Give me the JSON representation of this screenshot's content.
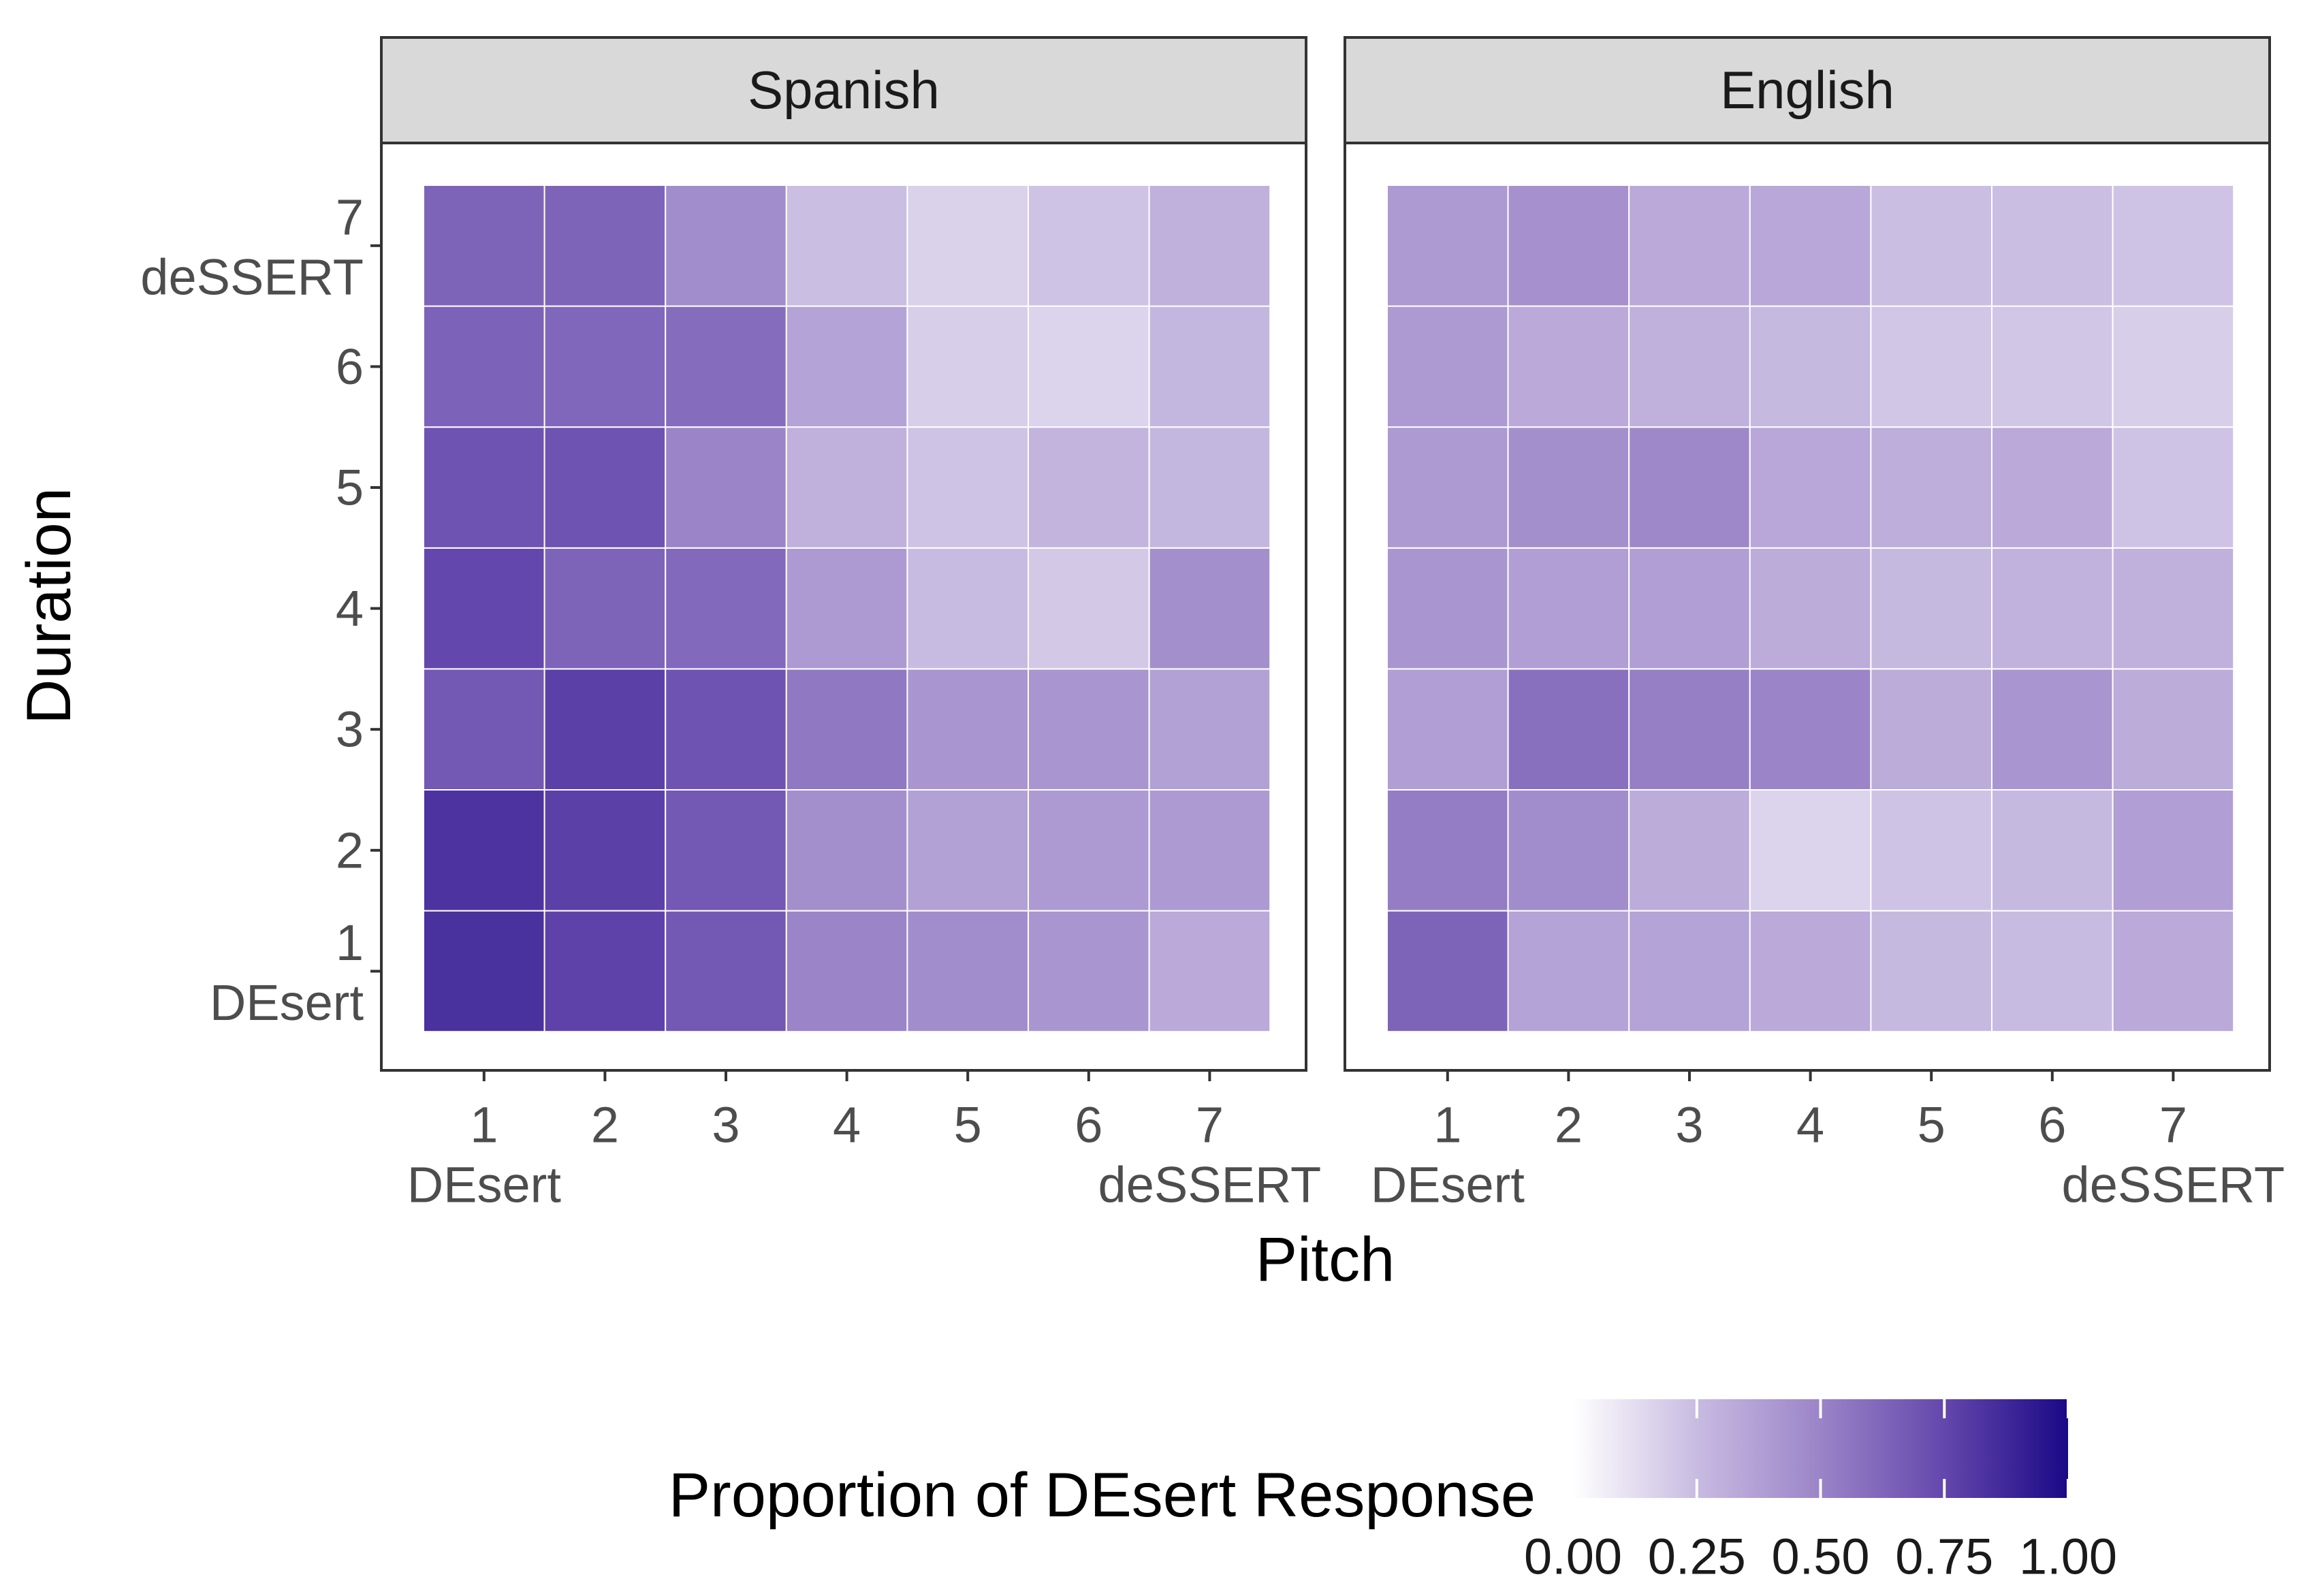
{
  "chart_data": {
    "type": "heatmap",
    "x_label": "Pitch",
    "y_label": "Duration",
    "x_categories": [
      "1",
      "2",
      "3",
      "4",
      "5",
      "6",
      "7"
    ],
    "y_categories": [
      "1",
      "2",
      "3",
      "4",
      "5",
      "6",
      "7"
    ],
    "x_endpoint_labels": {
      "1": "DEsert",
      "7": "deSSERT"
    },
    "y_endpoint_labels": {
      "1": "DEsert",
      "7": "deSSERT"
    },
    "facets": [
      {
        "name": "Spanish",
        "values_by_duration": [
          [
            0.84,
            0.77,
            0.68,
            0.5,
            0.46,
            0.42,
            0.33
          ],
          [
            0.83,
            0.78,
            0.68,
            0.45,
            0.37,
            0.4,
            0.4
          ],
          [
            0.68,
            0.78,
            0.7,
            0.55,
            0.42,
            0.42,
            0.37
          ],
          [
            0.75,
            0.63,
            0.61,
            0.4,
            0.25,
            0.2,
            0.45
          ],
          [
            0.7,
            0.7,
            0.5,
            0.3,
            0.22,
            0.28,
            0.27
          ],
          [
            0.64,
            0.62,
            0.6,
            0.36,
            0.18,
            0.16,
            0.27
          ],
          [
            0.63,
            0.63,
            0.46,
            0.24,
            0.17,
            0.22,
            0.3
          ]
        ]
      },
      {
        "name": "English",
        "values_by_duration": [
          [
            0.63,
            0.36,
            0.36,
            0.33,
            0.26,
            0.25,
            0.33
          ],
          [
            0.53,
            0.46,
            0.32,
            0.16,
            0.22,
            0.26,
            0.38
          ],
          [
            0.38,
            0.58,
            0.52,
            0.5,
            0.32,
            0.42,
            0.32
          ],
          [
            0.42,
            0.38,
            0.38,
            0.32,
            0.26,
            0.29,
            0.3
          ],
          [
            0.4,
            0.45,
            0.48,
            0.34,
            0.31,
            0.33,
            0.22
          ],
          [
            0.4,
            0.33,
            0.3,
            0.26,
            0.21,
            0.21,
            0.18
          ],
          [
            0.4,
            0.44,
            0.33,
            0.34,
            0.24,
            0.24,
            0.22
          ]
        ]
      }
    ],
    "colorbar": {
      "title": "Proportion of DEsert Response",
      "range": [
        0,
        1
      ],
      "tick_labels": [
        "0.00",
        "0.25",
        "0.50",
        "0.75",
        "1.00"
      ],
      "low_color": "#ffffff",
      "high_color": "#1a0986"
    },
    "legend_position": "bottom"
  }
}
